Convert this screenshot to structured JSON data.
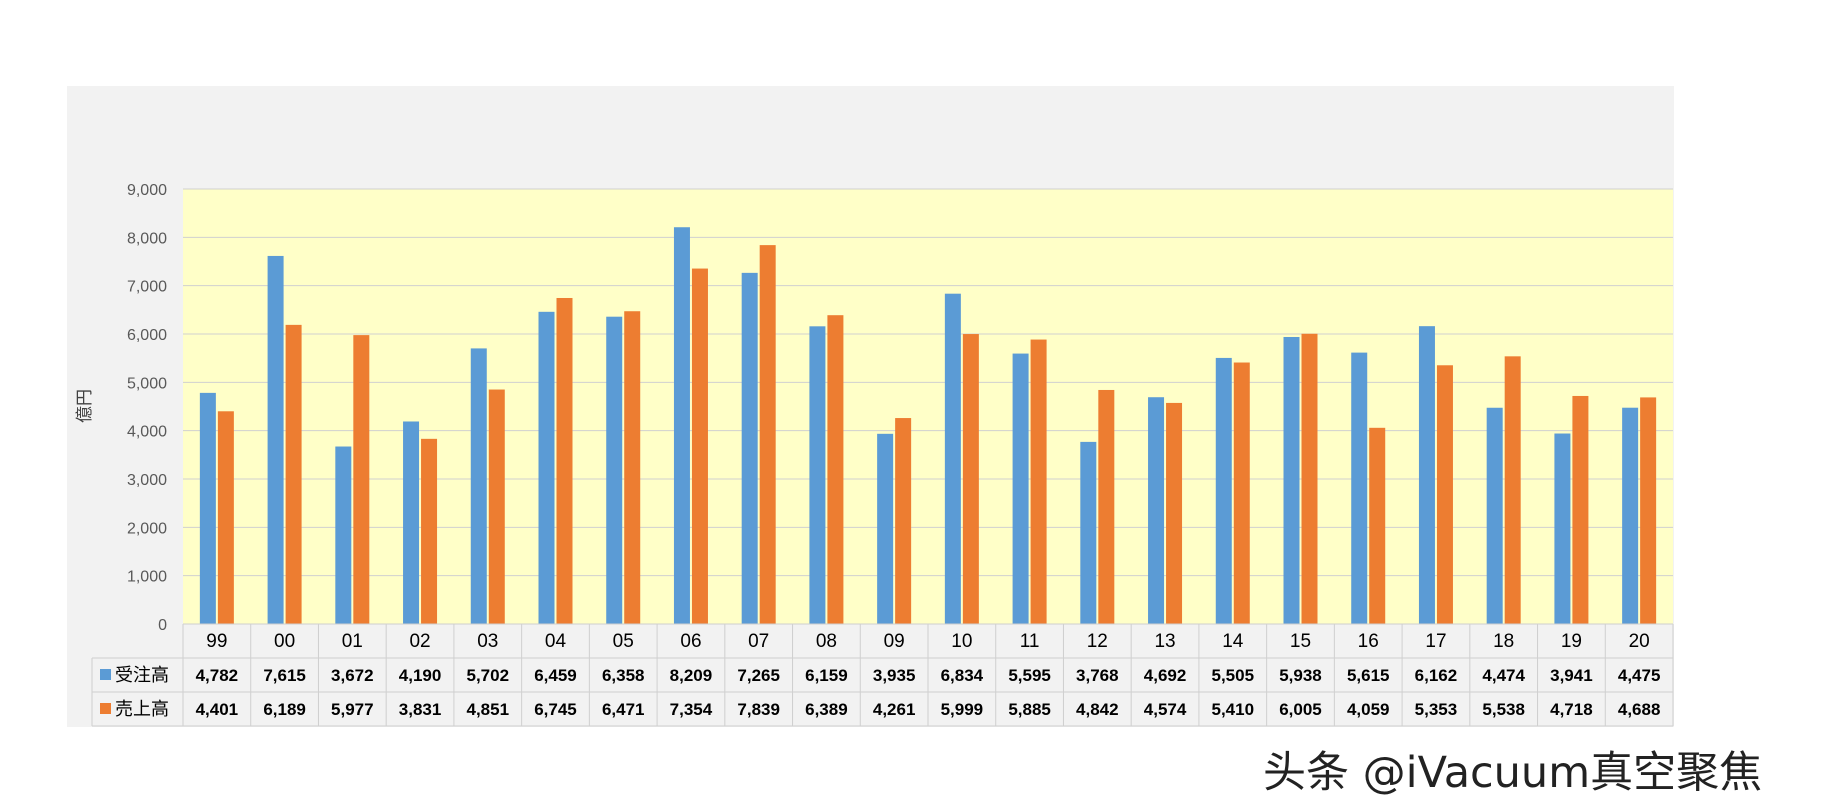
{
  "colors": {
    "order_bar": "#5b9bd5",
    "sales_bar": "#ed7d31",
    "plot_background": "#ffffc8",
    "chart_background": "#f2f2f2"
  },
  "watermark": "头条 @iVacuum真空聚焦",
  "chart_data": {
    "type": "bar",
    "ylabel": "億円",
    "ylim": [
      0,
      9000
    ],
    "yticks": [
      "0",
      "1,000",
      "2,000",
      "3,000",
      "4,000",
      "5,000",
      "6,000",
      "7,000",
      "8,000",
      "9,000"
    ],
    "grid": true,
    "legend": "data-table",
    "categories": [
      "99",
      "00",
      "01",
      "02",
      "03",
      "04",
      "05",
      "06",
      "07",
      "08",
      "09",
      "10",
      "11",
      "12",
      "13",
      "14",
      "15",
      "16",
      "17",
      "18",
      "19",
      "20"
    ],
    "series": [
      {
        "name": "受注高",
        "values": [
          4782,
          7615,
          3672,
          4190,
          5702,
          6459,
          6358,
          8209,
          7265,
          6159,
          3935,
          6834,
          5595,
          3768,
          4692,
          5505,
          5938,
          5615,
          6162,
          4474,
          3941,
          4475
        ],
        "labels": [
          "4,782",
          "7,615",
          "3,672",
          "4,190",
          "5,702",
          "6,459",
          "6,358",
          "8,209",
          "7,265",
          "6,159",
          "3,935",
          "6,834",
          "5,595",
          "3,768",
          "4,692",
          "5,505",
          "5,938",
          "5,615",
          "6,162",
          "4,474",
          "3,941",
          "4,475"
        ]
      },
      {
        "name": "売上高",
        "values": [
          4401,
          6189,
          5977,
          3831,
          4851,
          6745,
          6471,
          7354,
          7839,
          6389,
          4261,
          5999,
          5885,
          4842,
          4574,
          5410,
          6005,
          4059,
          5353,
          5538,
          4718,
          4688
        ],
        "labels": [
          "4,401",
          "6,189",
          "5,977",
          "3,831",
          "4,851",
          "6,745",
          "6,471",
          "7,354",
          "7,839",
          "6,389",
          "4,261",
          "5,999",
          "5,885",
          "4,842",
          "4,574",
          "5,410",
          "6,005",
          "4,059",
          "5,353",
          "5,538",
          "4,718",
          "4,688"
        ]
      }
    ]
  }
}
